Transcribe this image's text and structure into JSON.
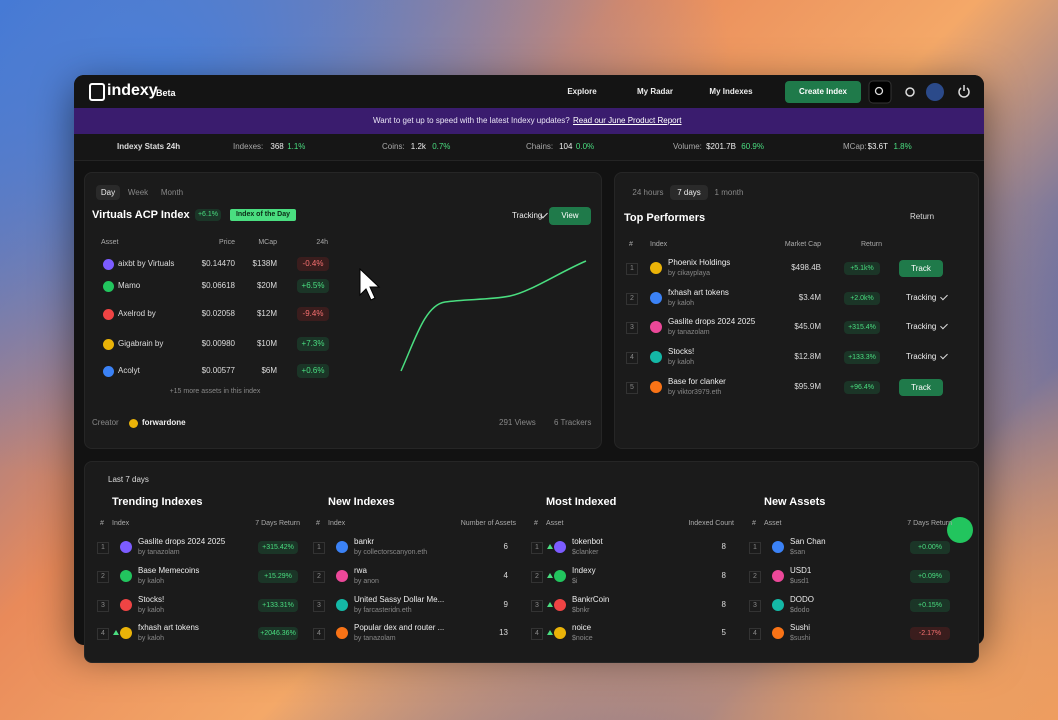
{
  "nav": {
    "logo": "indexy",
    "badge": "Beta",
    "links": [
      "Explore",
      "My Radar",
      "My Indexes"
    ],
    "create": "Create Index"
  },
  "banner": {
    "text": "Want to get up to speed with the latest Indexy updates?",
    "link": "Read our June Product Report"
  },
  "stats": {
    "label": "Indexy Stats 24h",
    "items": [
      {
        "label": "Indexes:",
        "value": "368",
        "change": "1.1%"
      },
      {
        "label": "Coins:",
        "value": "1.2k",
        "change": "0.7%"
      },
      {
        "label": "Chains:",
        "value": "104",
        "change": "0.0%"
      },
      {
        "label": "Volume:",
        "value": "$201.7B",
        "change": "60.9%"
      },
      {
        "label": "MCap:",
        "value": "$3.6T",
        "change": "1.8%"
      }
    ]
  },
  "index_card": {
    "tabs": [
      "Day",
      "Week",
      "Month"
    ],
    "title": "Virtuals ACP Index",
    "change": "+6.1%",
    "badge": "Index of the Day",
    "tracking": "Tracking",
    "view": "View",
    "headers": [
      "Asset",
      "Price",
      "MCap",
      "24h"
    ],
    "rows": [
      [
        "aixbt by Virtuals",
        "$0.14470",
        "$138M",
        "-0.4%"
      ],
      [
        "Mamo",
        "$0.06618",
        "$20M",
        "+6.5%"
      ],
      [
        "Axelrod by Virtuals",
        "$0.02058",
        "$12M",
        "-9.4%"
      ],
      [
        "Gigabrain by virtuals",
        "$0.00980",
        "$10M",
        "+7.3%"
      ],
      [
        "Acolyt",
        "$0.00577",
        "$6M",
        "+0.6%"
      ]
    ],
    "more": "+15 more assets in this index",
    "creator_label": "Creator",
    "creator": "forwardone",
    "views": "291 Views",
    "trackers": "6 Trackers"
  },
  "top": {
    "tabs": [
      "24 hours",
      "7 days",
      "1 month"
    ],
    "title": "Top Performers",
    "sort": "Return",
    "headers": [
      "#",
      "Index",
      "Market Cap",
      "Return"
    ],
    "rows": [
      {
        "rank": "1",
        "name": "Phoenix Holdings",
        "by": "by cikayplaya",
        "mcap": "$498.4B",
        "ret": "+5.1k%",
        "action": "Track"
      },
      {
        "rank": "2",
        "name": "fxhash art tokens",
        "by": "by kaloh",
        "mcap": "$3.4M",
        "ret": "+2.0k%",
        "action": "Tracking"
      },
      {
        "rank": "3",
        "name": "Gaslite drops 2024 2025",
        "by": "by tanazolam",
        "mcap": "$45.0M",
        "ret": "+315.4%",
        "action": "Tracking"
      },
      {
        "rank": "4",
        "name": "Stocks!",
        "by": "by kaloh",
        "mcap": "$12.8M",
        "ret": "+133.3%",
        "action": "Tracking"
      },
      {
        "rank": "5",
        "name": "Base for clanker",
        "by": "by viktor3979.eth",
        "mcap": "$95.9M",
        "ret": "+96.4%",
        "action": "Track"
      }
    ]
  },
  "bottom": {
    "period": "Last 7 days",
    "sections": [
      {
        "title": "Trending Indexes",
        "headers": [
          "#",
          "Index",
          "7 Days Return"
        ],
        "rows": [
          {
            "rank": "1",
            "name": "Gaslite drops 2024 2025",
            "sub": "by tanazolam",
            "value": "+315.42%"
          },
          {
            "rank": "2",
            "name": "Base Memecoins",
            "sub": "by kaloh",
            "value": "+15.29%"
          },
          {
            "rank": "3",
            "name": "Stocks!",
            "sub": "by kaloh",
            "value": "+133.31%"
          },
          {
            "rank": "4",
            "name": "fxhash art tokens",
            "sub": "by kaloh",
            "value": "+2046.36%"
          }
        ]
      },
      {
        "title": "New Indexes",
        "headers": [
          "#",
          "Index",
          "Number of Assets"
        ],
        "rows": [
          {
            "rank": "1",
            "name": "bankr",
            "sub": "by collectorscanyon.eth",
            "value": "6"
          },
          {
            "rank": "2",
            "name": "rwa",
            "sub": "by anon",
            "value": "4"
          },
          {
            "rank": "3",
            "name": "United Sassy Dollar Me...",
            "sub": "by farcasteridn.eth",
            "value": "9"
          },
          {
            "rank": "4",
            "name": "Popular dex and router ...",
            "sub": "by tanazolam",
            "value": "13"
          }
        ]
      },
      {
        "title": "Most Indexed",
        "headers": [
          "#",
          "Asset",
          "Indexed Count"
        ],
        "rows": [
          {
            "rank": "1",
            "name": "tokenbot",
            "sub": "$clanker",
            "value": "8"
          },
          {
            "rank": "2",
            "name": "Indexy",
            "sub": "$i",
            "value": "8"
          },
          {
            "rank": "3",
            "name": "BankrCoin",
            "sub": "$bnkr",
            "value": "8"
          },
          {
            "rank": "4",
            "name": "noice",
            "sub": "$noice",
            "value": "5"
          }
        ]
      },
      {
        "title": "New Assets",
        "headers": [
          "#",
          "Asset",
          "7 Days Return"
        ],
        "rows": [
          {
            "rank": "1",
            "name": "San Chan",
            "sub": "$san",
            "value": "+0.00%"
          },
          {
            "rank": "2",
            "name": "USD1",
            "sub": "$usd1",
            "value": "+0.09%"
          },
          {
            "rank": "3",
            "name": "DODO",
            "sub": "$dodo",
            "value": "+0.15%"
          },
          {
            "rank": "4",
            "name": "Sushi",
            "sub": "$sushi",
            "value": "-2.17%"
          }
        ]
      }
    ]
  }
}
